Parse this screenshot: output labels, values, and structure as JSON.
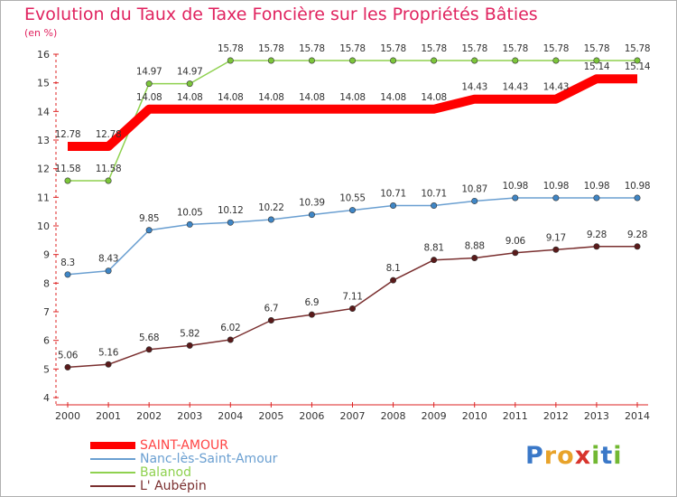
{
  "title": "Evolution du Taux de Taxe Foncière sur les Propriétés Bâties",
  "unit_label": "(en %)",
  "brand": {
    "letters": [
      "P",
      "r",
      "o",
      "x",
      "i",
      "t",
      "i"
    ],
    "colors": [
      "#3a78c8",
      "#e8a32a",
      "#e8a32a",
      "#d8342c",
      "#72b833",
      "#3a78c8",
      "#72b833"
    ]
  },
  "chart_data": {
    "type": "line",
    "title": "Evolution du Taux de Taxe Foncière sur les Propriétés Bâties",
    "ylabel": "(en %)",
    "xlabel": "",
    "x": [
      "2000",
      "2001",
      "2002",
      "2003",
      "2004",
      "2005",
      "2006",
      "2007",
      "2008",
      "2009",
      "2010",
      "2011",
      "2012",
      "2013",
      "2014"
    ],
    "ylim": [
      4,
      16
    ],
    "yticks": [
      "4",
      "5",
      "6",
      "7",
      "8",
      "9",
      "10",
      "11",
      "12",
      "13",
      "14",
      "15",
      "16"
    ],
    "grid": false,
    "legend_position": "bottom-left",
    "series": [
      {
        "name": "SAINT-AMOUR",
        "color": "#ff0000",
        "emphasis": true,
        "values": [
          12.78,
          12.78,
          14.08,
          14.08,
          14.08,
          14.08,
          14.08,
          14.08,
          14.08,
          14.08,
          14.43,
          14.43,
          14.43,
          15.14,
          15.14
        ],
        "labels": [
          "12.78",
          "12.78",
          "14.08",
          "14.08",
          "14.08",
          "14.08",
          "14.08",
          "14.08",
          "14.08",
          "14.08",
          "14.43",
          "14.43",
          "14.43",
          "15.14",
          "15.14"
        ]
      },
      {
        "name": "Nanc-lès-Saint-Amour",
        "color": "#6a9fd1",
        "marker": "#3f86c6",
        "values": [
          8.3,
          8.43,
          9.85,
          10.05,
          10.12,
          10.22,
          10.39,
          10.55,
          10.71,
          10.71,
          10.87,
          10.98,
          10.98,
          10.98,
          10.98
        ],
        "labels": [
          "8.3",
          "8.43",
          "9.85",
          "10.05",
          "10.12",
          "10.22",
          "10.39",
          "10.55",
          "10.71",
          "10.71",
          "10.87",
          "10.98",
          "10.98",
          "10.98",
          "10.98"
        ]
      },
      {
        "name": "Balanod",
        "color": "#8fd14f",
        "marker": "#7cc63a",
        "values": [
          11.58,
          11.58,
          14.97,
          14.97,
          15.78,
          15.78,
          15.78,
          15.78,
          15.78,
          15.78,
          15.78,
          15.78,
          15.78,
          15.78,
          15.78
        ],
        "labels": [
          "11.58",
          "11.58",
          "14.97",
          "14.97",
          "15.78",
          "15.78",
          "15.78",
          "15.78",
          "15.78",
          "15.78",
          "15.78",
          "15.78",
          "15.78",
          "15.78",
          "15.78"
        ]
      },
      {
        "name": "L' Aubépin",
        "color": "#7a2f2f",
        "marker": "#5a1a1a",
        "values": [
          5.06,
          5.16,
          5.68,
          5.82,
          6.02,
          6.7,
          6.9,
          7.11,
          8.1,
          8.81,
          8.88,
          9.06,
          9.17,
          9.28,
          9.28
        ],
        "labels": [
          "5.06",
          "5.16",
          "5.68",
          "5.82",
          "6.02",
          "6.7",
          "6.9",
          "7.11",
          "8.1",
          "8.81",
          "8.88",
          "9.06",
          "9.17",
          "9.28",
          "9.28"
        ]
      }
    ]
  }
}
